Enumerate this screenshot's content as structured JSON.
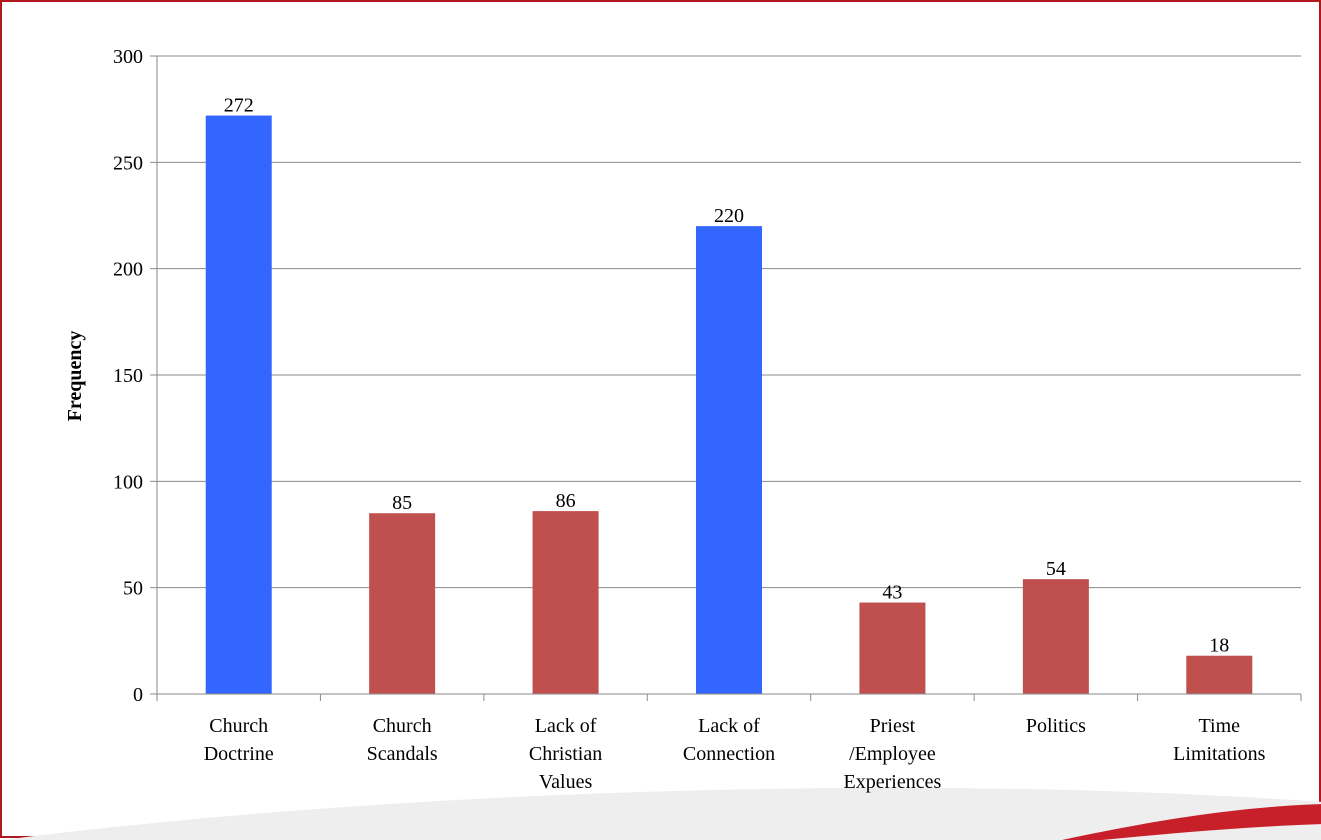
{
  "chart_data": {
    "type": "bar",
    "title": "",
    "xlabel": "",
    "ylabel": "Frequency",
    "ylim": [
      0,
      300
    ],
    "yticks": [
      0,
      50,
      100,
      150,
      200,
      250,
      300
    ],
    "grid": true,
    "categories": [
      [
        "Church",
        "Doctrine"
      ],
      [
        "Church",
        "Scandals"
      ],
      [
        "Lack of",
        "Christian",
        "Values"
      ],
      [
        "Lack of",
        "Connection"
      ],
      [
        "Priest",
        "/Employee",
        "Experiences"
      ],
      [
        "Politics"
      ],
      [
        "Time",
        "Limitations"
      ]
    ],
    "values": [
      272,
      85,
      86,
      220,
      43,
      54,
      18
    ],
    "colors": [
      "#3366ff",
      "#c0504d",
      "#c0504d",
      "#3366ff",
      "#c0504d",
      "#c0504d",
      "#c0504d"
    ]
  },
  "style": {
    "grid_color": "#8a8a8a",
    "axis_color": "#8a8a8a",
    "frame_color": "#b0181f"
  }
}
